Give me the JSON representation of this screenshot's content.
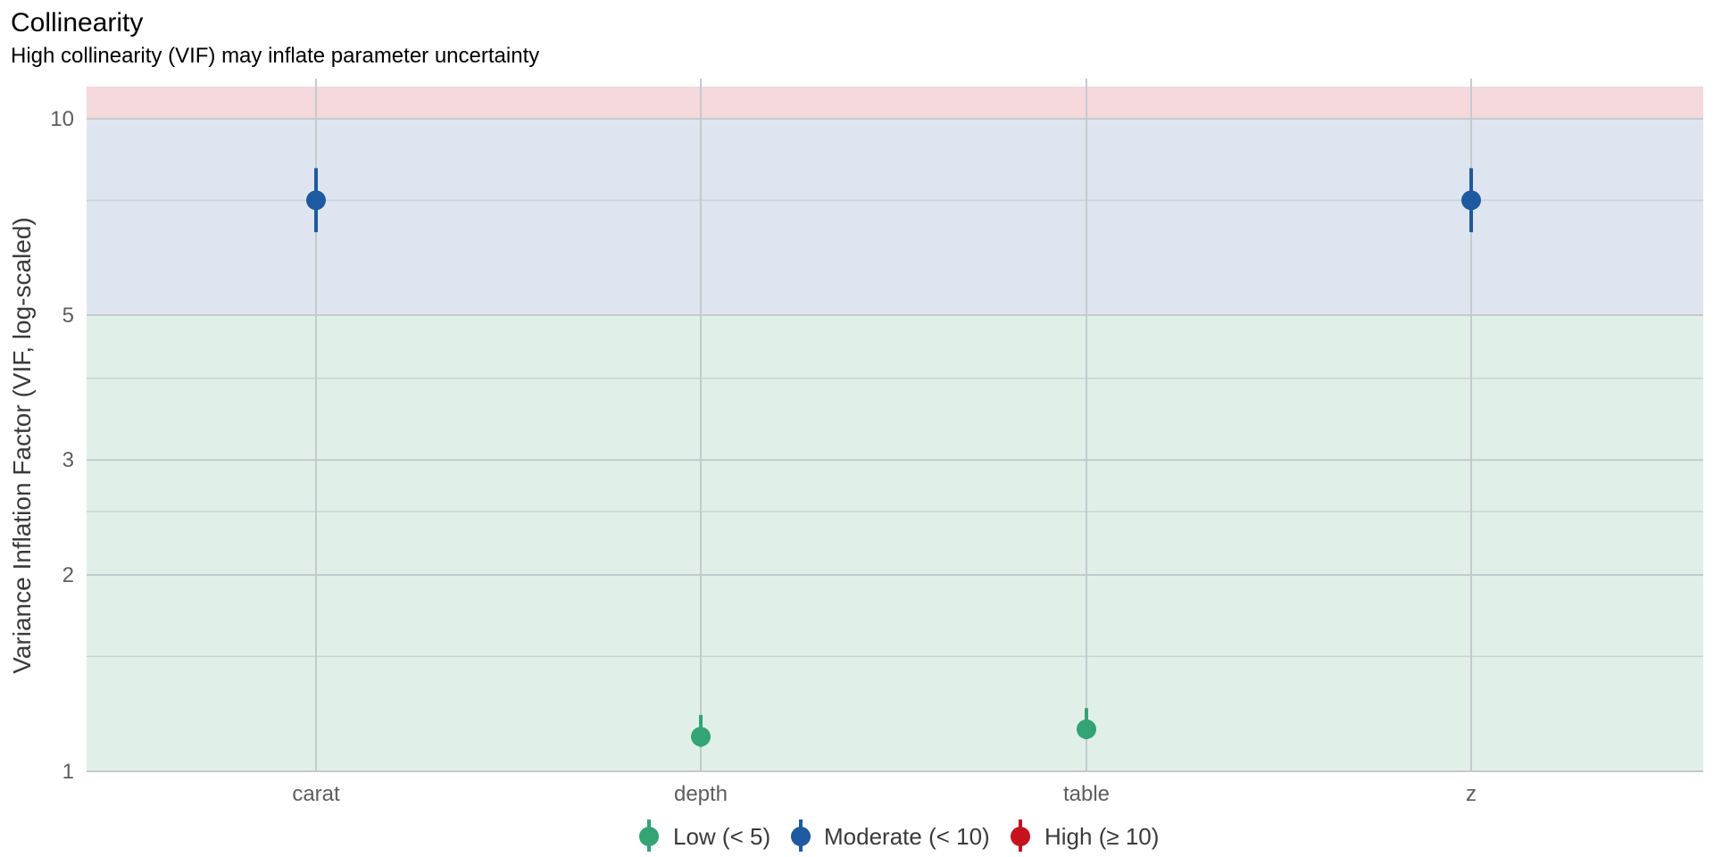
{
  "chart_data": {
    "type": "scatter",
    "title": "Collinearity",
    "subtitle": "High collinearity (VIF) may inflate parameter uncertainty",
    "xlabel": "",
    "ylabel": "Variance Inflation Factor (VIF, log-scaled)",
    "y_scale": "log",
    "ylim": [
      1,
      11.2
    ],
    "y_ticks": [
      1,
      2,
      3,
      5,
      10
    ],
    "y_minor": [
      1.5,
      2.5,
      4,
      7.5
    ],
    "grid": true,
    "categories": [
      "carat",
      "depth",
      "table",
      "z"
    ],
    "points": [
      {
        "term": "carat",
        "vif": 7.5,
        "ci_low": 6.7,
        "ci_high": 8.4,
        "group": "Moderate (< 10)"
      },
      {
        "term": "depth",
        "vif": 1.13,
        "ci_low": 1.09,
        "ci_high": 1.22,
        "group": "Low (< 5)"
      },
      {
        "term": "table",
        "vif": 1.16,
        "ci_low": 1.12,
        "ci_high": 1.25,
        "group": "Low (< 5)"
      },
      {
        "term": "z",
        "vif": 7.5,
        "ci_low": 6.7,
        "ci_high": 8.4,
        "group": "Moderate (< 10)"
      }
    ],
    "bands": [
      {
        "from": 1,
        "to": 5,
        "color": "#e0f0e8"
      },
      {
        "from": 5,
        "to": 10,
        "color": "#dfe5f0"
      },
      {
        "from": 10,
        "to": 11.2,
        "color": "#f5d8dc"
      }
    ],
    "legend": {
      "position": "bottom",
      "items": [
        {
          "label": "Low (< 5)",
          "color": "#33a474"
        },
        {
          "label": "Moderate (< 10)",
          "color": "#1d5aa0"
        },
        {
          "label": "High (≥ 10)",
          "color": "#c6121f"
        }
      ]
    }
  }
}
